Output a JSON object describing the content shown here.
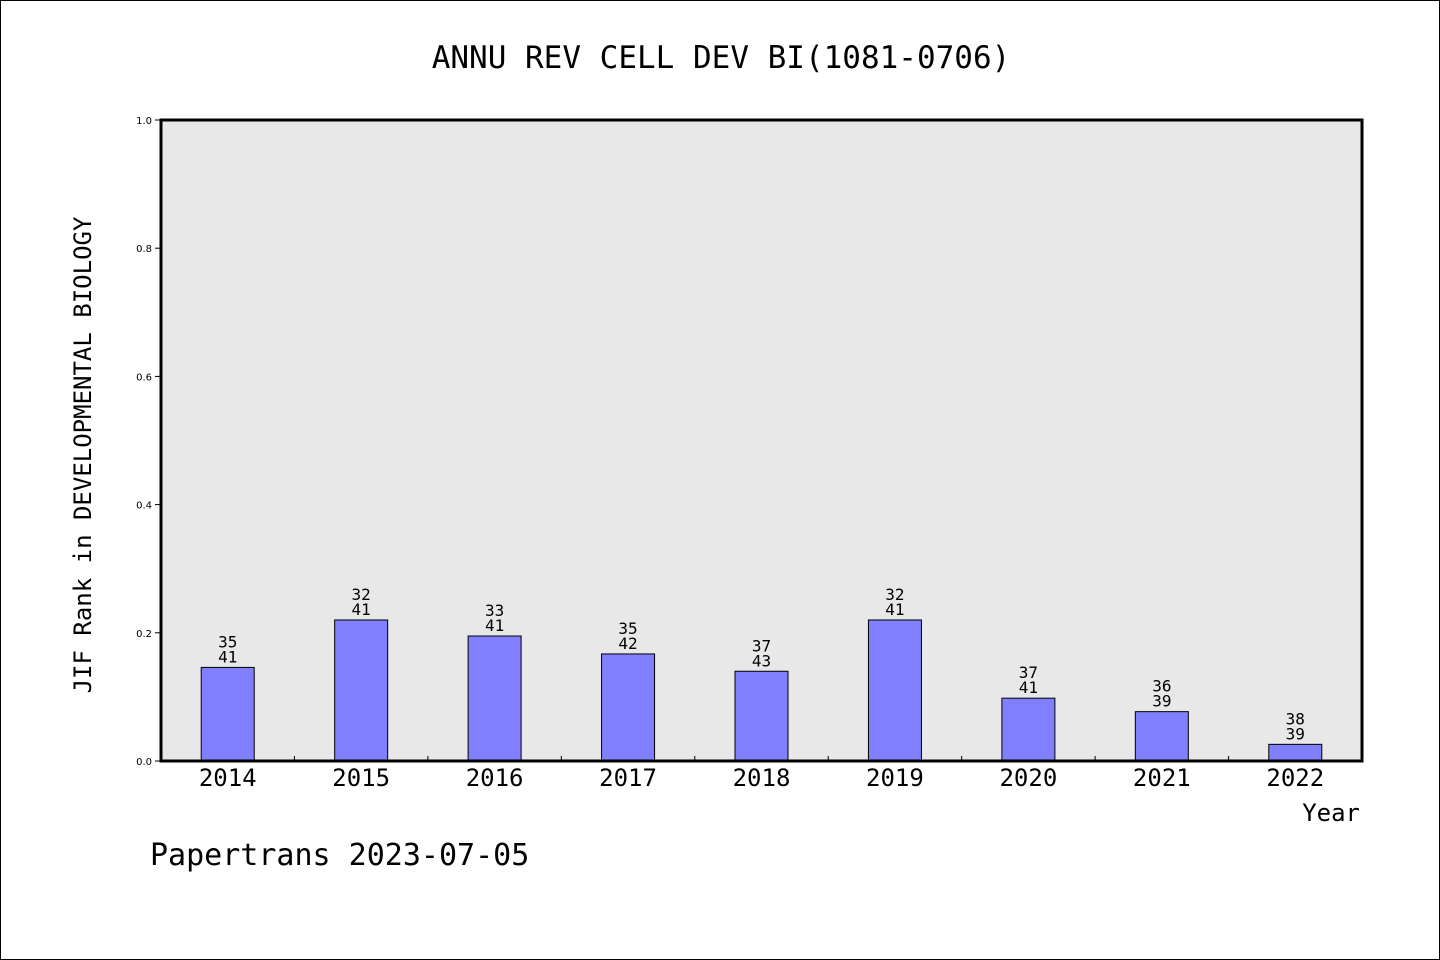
{
  "chart_data": {
    "type": "bar",
    "title": "ANNU REV CELL DEV BI(1081-0706)",
    "xlabel": "Year",
    "ylabel": "JIF Rank in DEVELOPMENTAL BIOLOGY",
    "footer": "Papertrans 2023-07-05",
    "ylim": [
      0,
      1.0
    ],
    "yticks": [
      "0.0",
      "0.2",
      "0.4",
      "0.6",
      "0.8",
      "1.0"
    ],
    "categories": [
      "2014",
      "2015",
      "2016",
      "2017",
      "2018",
      "2019",
      "2020",
      "2021",
      "2022"
    ],
    "values": [
      0.146,
      0.22,
      0.195,
      0.167,
      0.14,
      0.22,
      0.098,
      0.077,
      0.026
    ],
    "rank_labels": [
      {
        "rank": "35",
        "total": "41"
      },
      {
        "rank": "32",
        "total": "41"
      },
      {
        "rank": "33",
        "total": "41"
      },
      {
        "rank": "35",
        "total": "42"
      },
      {
        "rank": "37",
        "total": "43"
      },
      {
        "rank": "32",
        "total": "41"
      },
      {
        "rank": "37",
        "total": "41"
      },
      {
        "rank": "36",
        "total": "39"
      },
      {
        "rank": "38",
        "total": "39"
      }
    ],
    "grid": false,
    "bar_color": "#8080ff",
    "plot_background": "#e8e8e8"
  }
}
